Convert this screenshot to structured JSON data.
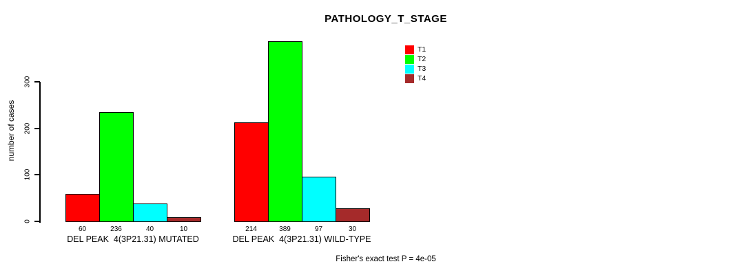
{
  "title": "PATHOLOGY_T_STAGE",
  "chart_data": {
    "type": "bar",
    "title": "PATHOLOGY_T_STAGE",
    "xlabel": "",
    "ylabel": "number of cases",
    "yticks": [
      0,
      100,
      200,
      300
    ],
    "ylim": [
      0,
      400
    ],
    "grid": false,
    "legend_position": "top-right",
    "series": [
      {
        "name": "T1",
        "color": "#ff0000"
      },
      {
        "name": "T2",
        "color": "#00ff00"
      },
      {
        "name": "T3",
        "color": "#00ffff"
      },
      {
        "name": "T4",
        "color": "#a52a2a"
      }
    ],
    "groups": [
      {
        "label": "DEL PEAK  4(3P21.31) MUTATED",
        "values": [
          60,
          236,
          40,
          10
        ]
      },
      {
        "label": "DEL PEAK  4(3P21.31) WILD-TYPE",
        "values": [
          214,
          389,
          97,
          30
        ]
      }
    ],
    "annotation": "Fisher's exact test P = 4e-05"
  }
}
